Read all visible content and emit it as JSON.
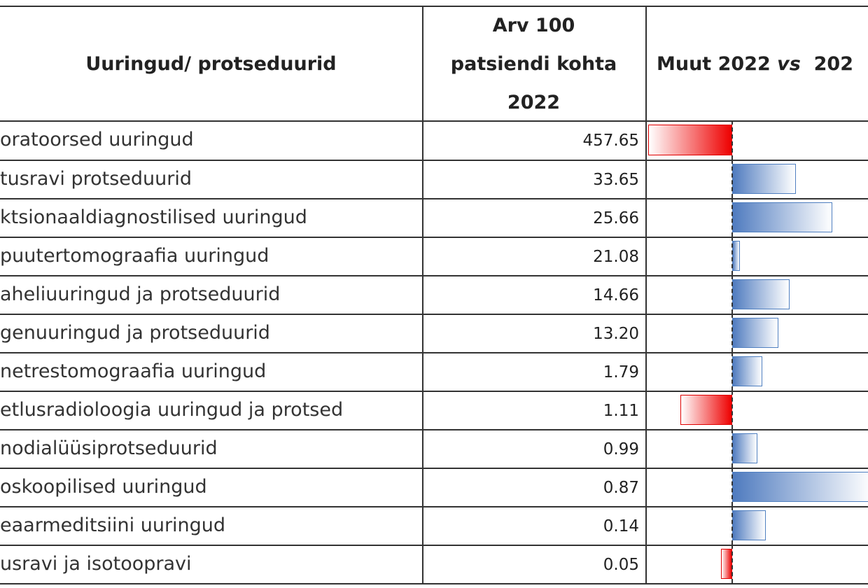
{
  "header": {
    "col1": "Uuringud/ protseduurid",
    "col2_lines": [
      "Arv 100",
      "patsiendi kohta",
      "2022"
    ],
    "col3_parts": [
      "Muut 2022 ",
      "vs",
      "  202"
    ]
  },
  "change_lim": [
    -124,
    194
  ],
  "rows": [
    {
      "name": "oratoorsed uuringud",
      "value": "457.65",
      "change": -120
    },
    {
      "name": "tusravi protseduurid",
      "value": "33.65",
      "change": 91
    },
    {
      "name": "ktsionaaldiagnostilised uuringud",
      "value": "25.66",
      "change": 143
    },
    {
      "name": "puutertomograafia uuringud",
      "value": "21.08",
      "change": 11
    },
    {
      "name": "aheliuuringud ja protseduurid",
      "value": "14.66",
      "change": 82
    },
    {
      "name": "genuuringud ja protseduurid",
      "value": "13.20",
      "change": 66
    },
    {
      "name": "netrestomograafia uuringud",
      "value": "1.79",
      "change": 43
    },
    {
      "name": "etlusradioloogia uuringud ja protsed",
      "value": "1.11",
      "change": -74
    },
    {
      "name": "nodialüüsiprotseduurid",
      "value": "0.99",
      "change": 36
    },
    {
      "name": "oskoopilised uuringud",
      "value": "0.87",
      "change": 200
    },
    {
      "name": "eaarmeditsiini uuringud",
      "value": "0.14",
      "change": 48
    },
    {
      "name": "usravi ja isotoopravi",
      "value": "0.05",
      "change": -16
    }
  ]
}
